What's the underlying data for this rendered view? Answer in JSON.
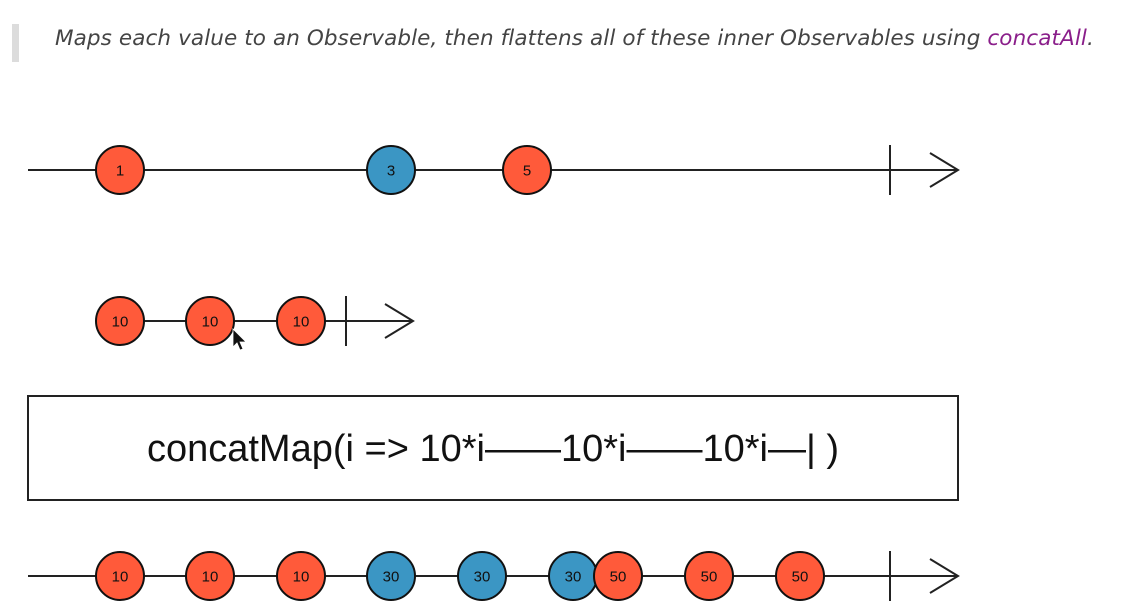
{
  "description": {
    "text": "Maps each value to an Observable, then flattens all of these inner Observables using ",
    "code": "concatAll",
    "suffix": "."
  },
  "colors": {
    "red": "#ff5a3a",
    "blue": "#3b96c4",
    "line": "#222222"
  },
  "operator_label": "concatMap(i => 10*i——10*i——10*i—| )",
  "source_stream": {
    "marbles": [
      {
        "label": "1",
        "color": "red"
      },
      {
        "label": "3",
        "color": "blue"
      },
      {
        "label": "5",
        "color": "red"
      }
    ],
    "completed": true
  },
  "inner_stream": {
    "marbles": [
      {
        "label": "10",
        "color": "red"
      },
      {
        "label": "10",
        "color": "red"
      },
      {
        "label": "10",
        "color": "red"
      }
    ],
    "completed": true
  },
  "output_stream": {
    "marbles": [
      {
        "label": "10",
        "color": "red"
      },
      {
        "label": "10",
        "color": "red"
      },
      {
        "label": "10",
        "color": "red"
      },
      {
        "label": "30",
        "color": "blue"
      },
      {
        "label": "30",
        "color": "blue"
      },
      {
        "label": "30",
        "color": "blue"
      },
      {
        "label": "50",
        "color": "red"
      },
      {
        "label": "50",
        "color": "red"
      },
      {
        "label": "50",
        "color": "red"
      }
    ],
    "completed": true
  }
}
